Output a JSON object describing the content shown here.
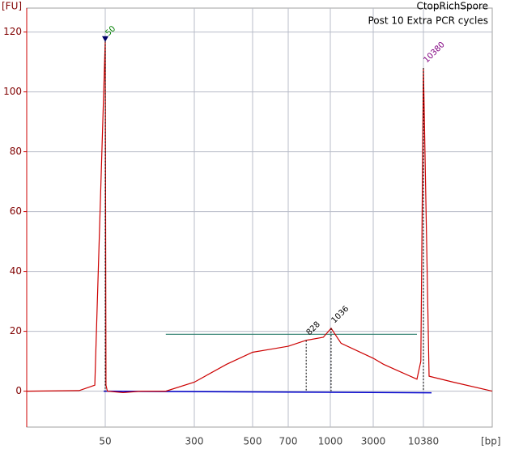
{
  "chart_data": {
    "type": "line",
    "title": "CtopRichSpore",
    "subtitle": "Post 10 Extra PCR cycles",
    "y_label": "[FU]",
    "x_label": "[bp]",
    "ylim": [
      -12,
      128
    ],
    "yticks": [
      0,
      20,
      40,
      60,
      80,
      100,
      120
    ],
    "xlim": [
      35,
      15000
    ],
    "xticks": [
      50,
      300,
      500,
      700,
      1000,
      3000,
      10380
    ],
    "grid": true,
    "series": [
      {
        "name": "CtopRichSpore",
        "color": "#cc0000",
        "x": [
          35,
          45,
          48,
          50,
          52,
          56,
          100,
          150,
          220,
          300,
          411,
          500,
          600,
          700,
          828,
          950,
          1036,
          1500,
          3000,
          4500,
          6452,
          9428,
          10000,
          10380,
          10760,
          12391,
          15000
        ],
        "values": [
          0,
          0.2,
          2,
          117,
          2,
          0,
          -0.5,
          0,
          0,
          3,
          9,
          13,
          14,
          15,
          17,
          18,
          21,
          16,
          11,
          9,
          7,
          4,
          10,
          108,
          5,
          3,
          0
        ]
      }
    ],
    "annotations": [
      {
        "label": 50,
        "x": 50,
        "y": 117,
        "color": "#008000"
      },
      {
        "label": 828,
        "x": 828,
        "y": 17,
        "color": "#000000"
      },
      {
        "label": 1036,
        "x": 1036,
        "y": 21,
        "color": "#000000"
      },
      {
        "label": 10380,
        "x": 10380,
        "y": 108,
        "color": "#800080"
      }
    ],
    "region": {
      "from": 220,
      "to": 9428,
      "level": 19,
      "color": "#2f7f6f"
    }
  }
}
